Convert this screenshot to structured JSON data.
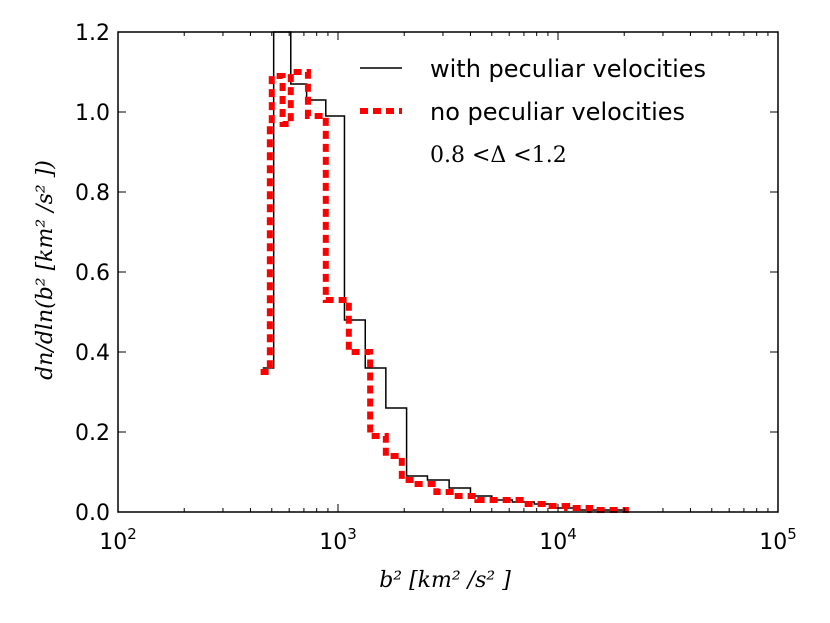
{
  "chart_data": {
    "type": "line",
    "title": "",
    "xlabel": "b² [km² /s² ]",
    "ylabel": "dn/dln(b² [km² /s² ])",
    "xscale": "log",
    "xlim": [
      100,
      100000
    ],
    "ylim": [
      0,
      1.2
    ],
    "grid": false,
    "legend_position": "top-right",
    "x_ticks": [
      {
        "value": 100,
        "base": "10",
        "exp": "2"
      },
      {
        "value": 1000,
        "base": "10",
        "exp": "3"
      },
      {
        "value": 10000,
        "base": "10",
        "exp": "4"
      },
      {
        "value": 100000,
        "base": "10",
        "exp": "5"
      }
    ],
    "y_ticks": [
      {
        "value": 0.0,
        "label": "0.0"
      },
      {
        "value": 0.2,
        "label": "0.2"
      },
      {
        "value": 0.4,
        "label": "0.4"
      },
      {
        "value": 0.6,
        "label": "0.6"
      },
      {
        "value": 0.8,
        "label": "0.8"
      },
      {
        "value": 1.0,
        "label": "1.0"
      },
      {
        "value": 1.2,
        "label": "1.2"
      }
    ],
    "annotation": "0.8 <Δ <1.2",
    "series": [
      {
        "name": "with peculiar velocities",
        "style": "solid",
        "color": "#000000",
        "edges": [
          455,
          510,
          610,
          720,
          880,
          1070,
          1330,
          1650,
          2050,
          2550,
          3200,
          4000,
          5000,
          6200,
          7800,
          9700,
          12100,
          15100,
          20000
        ],
        "values": [
          0.36,
          1.2,
          1.07,
          1.03,
          0.99,
          0.48,
          0.36,
          0.26,
          0.09,
          0.08,
          0.06,
          0.04,
          0.03,
          0.025,
          0.02,
          0.01,
          0.005,
          0.005
        ]
      },
      {
        "name": "no peculiar velocities",
        "style": "dashed",
        "color": "#ff0000",
        "edges": [
          445,
          490,
          500,
          510,
          560,
          610,
          650,
          730,
          880,
          1000,
          1120,
          1270,
          1400,
          1650,
          1950,
          2300,
          2800,
          3500,
          4300,
          5500,
          7000,
          8900,
          11000,
          14000,
          17500,
          21000
        ],
        "values": [
          0.35,
          0.97,
          1.09,
          1.09,
          0.97,
          1.1,
          1.1,
          0.99,
          0.53,
          0.53,
          0.4,
          0.4,
          0.19,
          0.14,
          0.08,
          0.07,
          0.05,
          0.04,
          0.03,
          0.03,
          0.02,
          0.015,
          0.01,
          0.005,
          0.005
        ]
      }
    ]
  }
}
